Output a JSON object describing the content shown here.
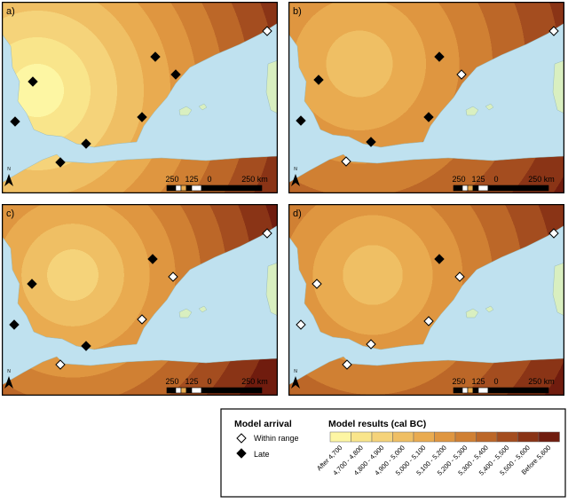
{
  "panels": [
    {
      "label": "a)"
    },
    {
      "label": "b)"
    },
    {
      "label": "c)"
    },
    {
      "label": "d)"
    }
  ],
  "scale_bar": {
    "labels": [
      "250",
      "125",
      "0",
      "250 km"
    ]
  },
  "north": "N",
  "legend": {
    "arrival_title": "Model arrival",
    "arrival_items": [
      "Within range",
      "Late"
    ],
    "results_title": "Model results (cal BC)",
    "classes": [
      {
        "label": "After 4,700",
        "color": "#fdf6a3"
      },
      {
        "label": "4,700 - 4,800",
        "color": "#f9e58b"
      },
      {
        "label": "4,800 - 4,900",
        "color": "#f5d37a"
      },
      {
        "label": "4,900 - 5,000",
        "color": "#efbf64"
      },
      {
        "label": "5,000 - 5,100",
        "color": "#e9ab50"
      },
      {
        "label": "5,100 - 5,200",
        "color": "#df9640"
      },
      {
        "label": "5,200 - 5,300",
        "color": "#d08033"
      },
      {
        "label": "5,300 - 5,400",
        "color": "#bc6728"
      },
      {
        "label": "5,400 - 5,500",
        "color": "#a44d1f"
      },
      {
        "label": "5,500 - 5,600",
        "color": "#8a3416"
      },
      {
        "label": "Before 5,600",
        "color": "#701c0e"
      }
    ]
  }
}
